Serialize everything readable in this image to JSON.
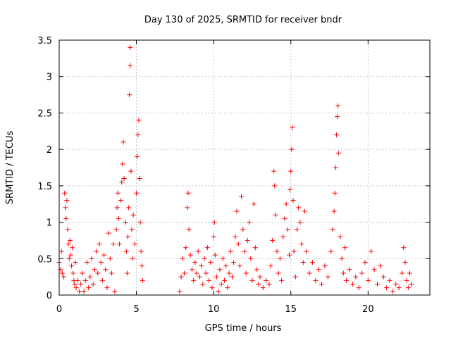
{
  "chart_data": {
    "type": "scatter",
    "title": "Day 130 of 2025, SRMTID for receiver bndr",
    "xlabel": "GPS time / hours",
    "ylabel": "SRMTID / TECUs",
    "xlim": [
      0,
      24
    ],
    "ylim": [
      0,
      3.5
    ],
    "grid": true,
    "xticks": [
      0,
      5,
      10,
      15,
      20
    ],
    "xtick_labels": [
      "0",
      "5",
      "10",
      "15",
      "20"
    ],
    "yticks": [
      0,
      0.5,
      1,
      1.5,
      2,
      2.5,
      3,
      3.5
    ],
    "ytick_labels": [
      "0",
      "0.5",
      "1",
      "1.5",
      "2",
      "2.5",
      "3",
      "3.5"
    ],
    "marker": "+",
    "marker_color": "#ff0000",
    "series": [
      {
        "name": "SRMTID",
        "points": [
          [
            0.0,
            0.45
          ],
          [
            0.1,
            0.35
          ],
          [
            0.15,
            0.6
          ],
          [
            0.2,
            0.3
          ],
          [
            0.3,
            0.25
          ],
          [
            0.35,
            1.4
          ],
          [
            0.4,
            1.2
          ],
          [
            0.45,
            1.05
          ],
          [
            0.5,
            1.3
          ],
          [
            0.55,
            0.9
          ],
          [
            0.6,
            0.7
          ],
          [
            0.65,
            0.5
          ],
          [
            0.7,
            0.75
          ],
          [
            0.75,
            0.55
          ],
          [
            0.8,
            0.4
          ],
          [
            0.85,
            0.65
          ],
          [
            0.9,
            0.3
          ],
          [
            0.95,
            0.2
          ],
          [
            1.0,
            0.15
          ],
          [
            1.05,
            0.45
          ],
          [
            1.1,
            0.1
          ],
          [
            1.2,
            0.2
          ],
          [
            1.3,
            0.05
          ],
          [
            1.4,
            0.15
          ],
          [
            1.5,
            0.3
          ],
          [
            1.6,
            0.05
          ],
          [
            1.7,
            0.2
          ],
          [
            1.8,
            0.45
          ],
          [
            1.9,
            0.1
          ],
          [
            2.0,
            0.25
          ],
          [
            2.1,
            0.5
          ],
          [
            2.2,
            0.15
          ],
          [
            2.3,
            0.35
          ],
          [
            2.4,
            0.6
          ],
          [
            2.5,
            0.3
          ],
          [
            2.6,
            0.7
          ],
          [
            2.7,
            0.45
          ],
          [
            2.8,
            0.2
          ],
          [
            2.9,
            0.55
          ],
          [
            3.0,
            0.35
          ],
          [
            3.1,
            0.1
          ],
          [
            3.2,
            0.85
          ],
          [
            3.3,
            0.5
          ],
          [
            3.4,
            0.3
          ],
          [
            3.5,
            0.7
          ],
          [
            3.6,
            0.05
          ],
          [
            3.7,
            0.9
          ],
          [
            3.75,
            1.2
          ],
          [
            3.8,
            1.4
          ],
          [
            3.85,
            1.05
          ],
          [
            3.9,
            0.7
          ],
          [
            4.0,
            1.3
          ],
          [
            4.05,
            1.55
          ],
          [
            4.1,
            1.8
          ],
          [
            4.15,
            2.1
          ],
          [
            4.2,
            1.6
          ],
          [
            4.3,
            1.0
          ],
          [
            4.35,
            0.6
          ],
          [
            4.4,
            0.3
          ],
          [
            4.45,
            0.8
          ],
          [
            4.5,
            1.2
          ],
          [
            4.55,
            2.75
          ],
          [
            4.6,
            3.15
          ],
          [
            4.6,
            3.4
          ],
          [
            4.65,
            1.7
          ],
          [
            4.7,
            0.9
          ],
          [
            4.75,
            0.5
          ],
          [
            4.8,
            1.1
          ],
          [
            4.9,
            0.7
          ],
          [
            5.0,
            1.4
          ],
          [
            5.05,
            1.9
          ],
          [
            5.1,
            2.2
          ],
          [
            5.15,
            2.4
          ],
          [
            5.2,
            1.6
          ],
          [
            5.25,
            1.0
          ],
          [
            5.3,
            0.6
          ],
          [
            5.35,
            0.4
          ],
          [
            5.4,
            0.2
          ],
          [
            7.8,
            0.05
          ],
          [
            7.9,
            0.25
          ],
          [
            8.0,
            0.5
          ],
          [
            8.1,
            0.3
          ],
          [
            8.2,
            0.65
          ],
          [
            8.3,
            1.2
          ],
          [
            8.35,
            1.4
          ],
          [
            8.4,
            0.9
          ],
          [
            8.5,
            0.55
          ],
          [
            8.6,
            0.35
          ],
          [
            8.7,
            0.2
          ],
          [
            8.8,
            0.45
          ],
          [
            8.9,
            0.3
          ],
          [
            9.0,
            0.6
          ],
          [
            9.1,
            0.25
          ],
          [
            9.2,
            0.4
          ],
          [
            9.3,
            0.15
          ],
          [
            9.4,
            0.5
          ],
          [
            9.5,
            0.3
          ],
          [
            9.6,
            0.65
          ],
          [
            9.7,
            0.2
          ],
          [
            9.8,
            0.45
          ],
          [
            9.9,
            0.1
          ],
          [
            10.0,
            0.8
          ],
          [
            10.05,
            1.0
          ],
          [
            10.1,
            0.55
          ],
          [
            10.2,
            0.25
          ],
          [
            10.3,
            0.05
          ],
          [
            10.4,
            0.35
          ],
          [
            10.5,
            0.15
          ],
          [
            10.6,
            0.5
          ],
          [
            10.7,
            0.2
          ],
          [
            10.8,
            0.4
          ],
          [
            10.9,
            0.1
          ],
          [
            11.0,
            0.3
          ],
          [
            11.1,
            0.6
          ],
          [
            11.2,
            0.25
          ],
          [
            11.3,
            0.45
          ],
          [
            11.4,
            0.8
          ],
          [
            11.5,
            1.15
          ],
          [
            11.6,
            0.7
          ],
          [
            11.7,
            0.4
          ],
          [
            11.8,
            1.35
          ],
          [
            11.9,
            0.9
          ],
          [
            12.0,
            0.6
          ],
          [
            12.1,
            0.3
          ],
          [
            12.2,
            0.75
          ],
          [
            12.3,
            1.0
          ],
          [
            12.4,
            0.5
          ],
          [
            12.5,
            0.2
          ],
          [
            12.6,
            1.25
          ],
          [
            12.7,
            0.65
          ],
          [
            12.8,
            0.35
          ],
          [
            12.9,
            0.15
          ],
          [
            13.0,
            0.25
          ],
          [
            13.2,
            0.1
          ],
          [
            13.4,
            0.2
          ],
          [
            13.6,
            0.15
          ],
          [
            13.7,
            0.4
          ],
          [
            13.8,
            0.75
          ],
          [
            13.9,
            1.7
          ],
          [
            13.95,
            1.5
          ],
          [
            14.0,
            1.1
          ],
          [
            14.1,
            0.6
          ],
          [
            14.2,
            0.3
          ],
          [
            14.3,
            0.5
          ],
          [
            14.4,
            0.2
          ],
          [
            14.5,
            0.8
          ],
          [
            14.6,
            1.05
          ],
          [
            14.7,
            1.25
          ],
          [
            14.8,
            0.9
          ],
          [
            14.9,
            0.55
          ],
          [
            14.95,
            1.45
          ],
          [
            15.0,
            1.7
          ],
          [
            15.05,
            2.0
          ],
          [
            15.1,
            2.3
          ],
          [
            15.15,
            1.3
          ],
          [
            15.2,
            0.6
          ],
          [
            15.3,
            0.25
          ],
          [
            15.4,
            0.9
          ],
          [
            15.5,
            1.2
          ],
          [
            15.6,
            1.0
          ],
          [
            15.7,
            0.7
          ],
          [
            15.8,
            0.45
          ],
          [
            15.9,
            1.15
          ],
          [
            16.0,
            0.6
          ],
          [
            16.2,
            0.3
          ],
          [
            16.4,
            0.45
          ],
          [
            16.6,
            0.2
          ],
          [
            16.8,
            0.35
          ],
          [
            17.0,
            0.15
          ],
          [
            17.2,
            0.4
          ],
          [
            17.4,
            0.25
          ],
          [
            17.6,
            0.6
          ],
          [
            17.7,
            0.9
          ],
          [
            17.8,
            1.15
          ],
          [
            17.85,
            1.4
          ],
          [
            17.9,
            1.75
          ],
          [
            17.95,
            2.2
          ],
          [
            18.0,
            2.45
          ],
          [
            18.05,
            2.6
          ],
          [
            18.1,
            1.95
          ],
          [
            18.2,
            0.8
          ],
          [
            18.3,
            0.5
          ],
          [
            18.4,
            0.3
          ],
          [
            18.5,
            0.65
          ],
          [
            18.6,
            0.2
          ],
          [
            18.8,
            0.35
          ],
          [
            19.0,
            0.15
          ],
          [
            19.2,
            0.25
          ],
          [
            19.4,
            0.1
          ],
          [
            19.6,
            0.3
          ],
          [
            19.8,
            0.45
          ],
          [
            20.0,
            0.2
          ],
          [
            20.2,
            0.6
          ],
          [
            20.4,
            0.35
          ],
          [
            20.6,
            0.15
          ],
          [
            20.8,
            0.4
          ],
          [
            21.0,
            0.25
          ],
          [
            21.2,
            0.1
          ],
          [
            21.4,
            0.2
          ],
          [
            21.6,
            0.05
          ],
          [
            21.8,
            0.15
          ],
          [
            22.0,
            0.1
          ],
          [
            22.2,
            0.3
          ],
          [
            22.3,
            0.65
          ],
          [
            22.4,
            0.45
          ],
          [
            22.5,
            0.2
          ],
          [
            22.6,
            0.1
          ],
          [
            22.7,
            0.3
          ],
          [
            22.8,
            0.15
          ]
        ]
      }
    ]
  }
}
